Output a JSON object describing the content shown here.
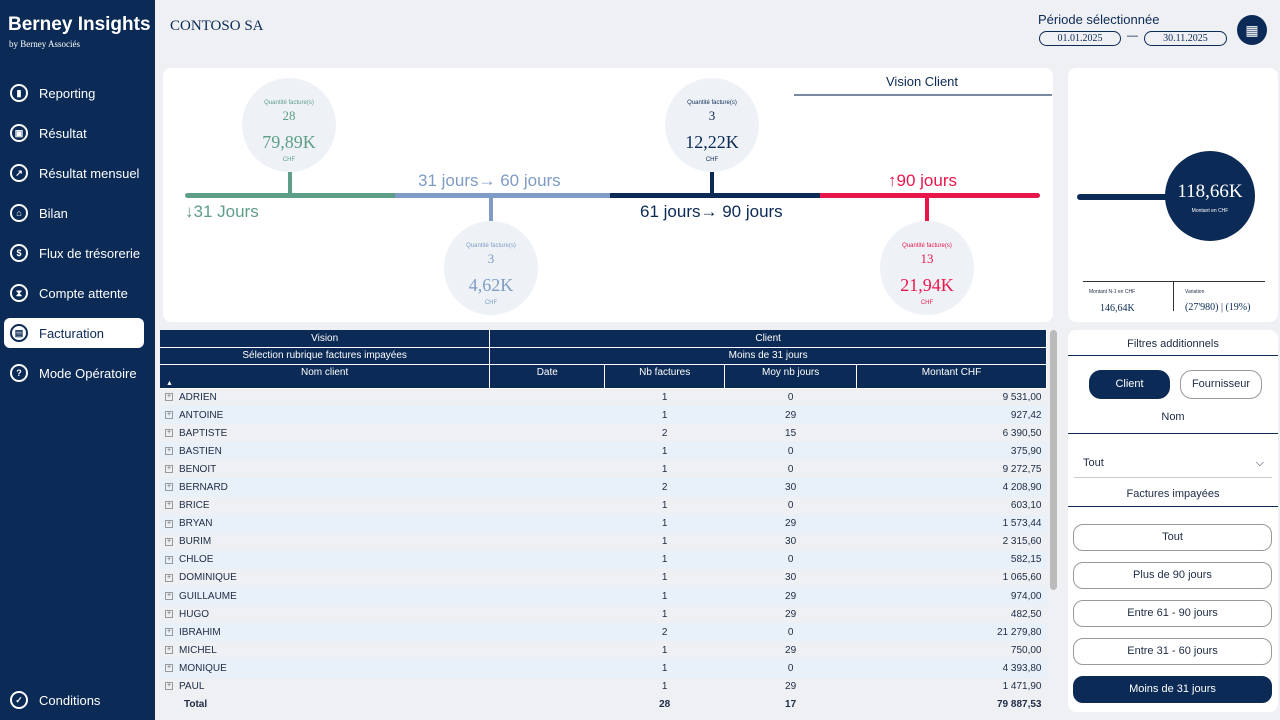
{
  "brand": {
    "name": "Berney Insights",
    "sub": "by Berney Associés"
  },
  "nav": [
    {
      "label": "Reporting",
      "icon": "bar-chart-icon"
    },
    {
      "label": "Résultat",
      "icon": "wallet-icon"
    },
    {
      "label": "Résultat mensuel",
      "icon": "trend-icon"
    },
    {
      "label": "Bilan",
      "icon": "bank-icon"
    },
    {
      "label": "Flux de trésorerie",
      "icon": "cashflow-icon"
    },
    {
      "label": "Compte attente",
      "icon": "hourglass-icon"
    },
    {
      "label": "Facturation",
      "icon": "invoice-icon"
    },
    {
      "label": "Mode Opératoire",
      "icon": "help-icon"
    }
  ],
  "conditions": "Conditions",
  "header": {
    "title": "CONTOSO SA",
    "period_label": "Période sélectionnée",
    "date_from": "01.01.2025",
    "date_sep": "—",
    "date_to": "30.11.2025"
  },
  "timeline": {
    "vision": "Vision Client",
    "colors": {
      "green": "#5e9e86",
      "blue": "#7e9cc5",
      "navy": "#0b2a55",
      "red": "#e8174b"
    },
    "labels": {
      "lt31": "↓31 Jours",
      "b31_60": "31 jours→ 60 jours",
      "b61_90": "61 jours→ 90 jours",
      "gt90": "↑90 jours"
    },
    "buckets": [
      {
        "q_label": "Quantité facture(s)",
        "count": "28",
        "amount": "79,89K",
        "cur": "CHF"
      },
      {
        "q_label": "Quantité facture(s)",
        "count": "3",
        "amount": "4,62K",
        "cur": "CHF"
      },
      {
        "q_label": "Quantité facture(s)",
        "count": "3",
        "amount": "12,22K",
        "cur": "CHF"
      },
      {
        "q_label": "Quantité facture(s)",
        "count": "13",
        "amount": "21,94K",
        "cur": "CHF"
      }
    ]
  },
  "kpi": {
    "value": "118,66K",
    "label": "Montant en CHF",
    "prev_label": "Montant N-1 en CHF",
    "prev": "146,64K",
    "var_label": "Variation",
    "var": "(27'980) | (19%)"
  },
  "table": {
    "h1": [
      "Vision",
      "Client"
    ],
    "h2": [
      "Sélection rubrique factures impayées",
      "Moins de 31 jours"
    ],
    "cols": [
      "Nom client",
      "Date",
      "Nb factures",
      "Moy nb jours",
      "Montant CHF"
    ],
    "rows": [
      [
        "ADRIEN",
        "1",
        "0",
        "9 531,00"
      ],
      [
        "ANTOINE",
        "1",
        "29",
        "927,42"
      ],
      [
        "BAPTISTE",
        "2",
        "15",
        "6 390,50"
      ],
      [
        "BASTIEN",
        "1",
        "0",
        "375,90"
      ],
      [
        "BENOIT",
        "1",
        "0",
        "9 272,75"
      ],
      [
        "BERNARD",
        "2",
        "30",
        "4 208,90"
      ],
      [
        "BRICE",
        "1",
        "0",
        "603,10"
      ],
      [
        "BRYAN",
        "1",
        "29",
        "1 573,44"
      ],
      [
        "BURIM",
        "1",
        "30",
        "2 315,60"
      ],
      [
        "CHLOE",
        "1",
        "0",
        "582,15"
      ],
      [
        "DOMINIQUE",
        "1",
        "30",
        "1 065,60"
      ],
      [
        "GUILLAUME",
        "1",
        "29",
        "974,00"
      ],
      [
        "HUGO",
        "1",
        "29",
        "482,50"
      ],
      [
        "IBRAHIM",
        "2",
        "0",
        "21 279,80"
      ],
      [
        "MICHEL",
        "1",
        "29",
        "750,00"
      ],
      [
        "MONIQUE",
        "1",
        "0",
        "4 393,80"
      ],
      [
        "PAUL",
        "1",
        "29",
        "1 471,90"
      ]
    ],
    "total": [
      "Total",
      "28",
      "17",
      "79 887,53"
    ]
  },
  "filters": {
    "title": "Filtres additionnels",
    "client": "Client",
    "fournisseur": "Fournisseur",
    "nom": "Nom",
    "select": "Tout",
    "fi_title": "Factures impayées",
    "buttons": [
      "Tout",
      "Plus de 90 jours",
      "Entre 61 - 90 jours",
      "Entre 31 - 60 jours",
      "Moins de 31 jours"
    ]
  }
}
